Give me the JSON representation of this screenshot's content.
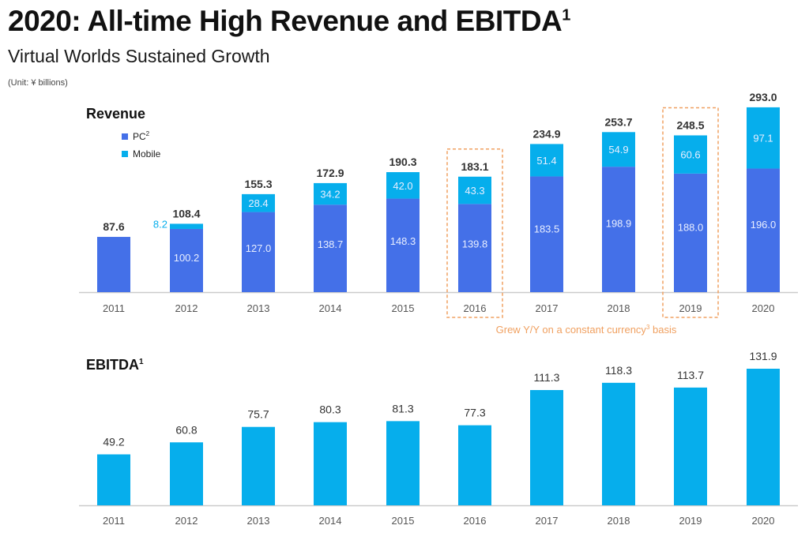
{
  "header": {
    "title": "2020: All-time High Revenue and EBITDA",
    "title_sup": "1",
    "subtitle": "Virtual Worlds Sustained Growth",
    "unit": "(Unit: ¥ billions)"
  },
  "colors": {
    "pc": "#4470e8",
    "mobile": "#06aeec",
    "ebitda": "#06aeec",
    "highlight": "#f0a060",
    "axis": "#cccccc"
  },
  "chart_data": [
    {
      "type": "bar",
      "stacked": true,
      "title": "Revenue",
      "categories": [
        "2011",
        "2012",
        "2013",
        "2014",
        "2015",
        "2016",
        "2017",
        "2018",
        "2019",
        "2020"
      ],
      "series": [
        {
          "name": "PC",
          "name_sup": "2",
          "values": [
            87.6,
            100.2,
            127.0,
            138.7,
            148.3,
            139.8,
            183.5,
            198.9,
            188.0,
            196.0
          ]
        },
        {
          "name": "Mobile",
          "values": [
            0,
            8.2,
            28.4,
            34.2,
            42.0,
            43.3,
            51.4,
            54.9,
            60.6,
            97.1
          ]
        }
      ],
      "totals": [
        87.6,
        108.4,
        155.3,
        172.9,
        190.3,
        183.1,
        234.9,
        253.7,
        248.5,
        293.0
      ],
      "pc_labels_shown": [
        false,
        true,
        true,
        true,
        true,
        true,
        true,
        true,
        true,
        true
      ],
      "legend": [
        "PC",
        "Mobile"
      ],
      "legend_position": "top-left",
      "highlighted_categories": [
        "2016",
        "2019"
      ],
      "annotation": {
        "text_before": "Grew Y/Y on a constant currency",
        "sup": "3",
        "text_after": " basis"
      },
      "ylim": [
        0,
        300
      ],
      "grid": false
    },
    {
      "type": "bar",
      "title": "EBITDA",
      "title_sup": "1",
      "categories": [
        "2011",
        "2012",
        "2013",
        "2014",
        "2015",
        "2016",
        "2017",
        "2018",
        "2019",
        "2020"
      ],
      "values": [
        49.2,
        60.8,
        75.7,
        80.3,
        81.3,
        77.3,
        111.3,
        118.3,
        113.7,
        131.9
      ],
      "ylim": [
        0,
        135
      ],
      "grid": false
    }
  ]
}
